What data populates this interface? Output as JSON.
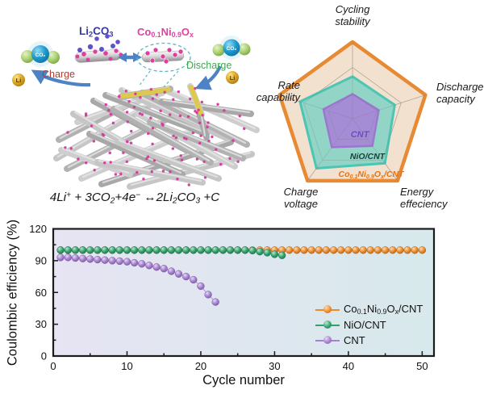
{
  "scheme": {
    "li2co3": "Li<sub>2</sub>CO<sub>3</sub>",
    "catalyst": "Co<sub>0.1</sub>Ni<sub>0.9</sub>O<sub>x</sub>",
    "charge": "Charge",
    "discharge": "Discharge",
    "li": "Li",
    "co2": "CO₂",
    "equation": "4Li<sup>+</sup> + 3CO<sub>2</sub>+4e<sup>−</sup> ↔2Li<sub>2</sub>CO<sub>3</sub> +C"
  },
  "colors": {
    "charge_text": "#B43A2E",
    "discharge_text": "#3FA653",
    "li2co3_text": "#3A3A9E",
    "catalyst_text": "#E03FA3",
    "arrow_blue": "#4D82C4",
    "dot_magenta": "#D6389D",
    "plot_bg_left": "#E7E4F3",
    "plot_bg_right": "#D7E9EC",
    "plot_border": "#1B1B1B"
  },
  "chart_data": [
    {
      "type": "radar",
      "axes": [
        "Cycling stability",
        "Discharge capacity",
        "Energy effeciency",
        "Charge voltage",
        "Rate capability"
      ],
      "range": [
        0,
        1
      ],
      "grid_levels": [
        0.333,
        0.667
      ],
      "series": [
        {
          "name": "Co<sub>0.1</sub>Ni<sub>0.9</sub>O<sub>x</sub>/CNT",
          "values": [
            1,
            1,
            1,
            1,
            1
          ],
          "stroke": "#E78A33",
          "fill": "#F3E1CF",
          "label_color": "#E0741C"
        },
        {
          "name": "NiO/CNT",
          "values": [
            0.55,
            0.58,
            0.72,
            0.8,
            0.72
          ],
          "stroke": "#4CC5B5",
          "fill": "#8AD2C4",
          "label_color": "#173F38"
        },
        {
          "name": "CNT",
          "values": [
            0.32,
            0.36,
            0.44,
            0.46,
            0.4
          ],
          "stroke": "#9B77CF",
          "fill": "#A689D7",
          "label_color": "#6A4FBF"
        }
      ]
    },
    {
      "type": "scatter",
      "xlabel": "Cycle number",
      "ylabel": "Coulombic efficiency (%)",
      "xlim": [
        0,
        51.6
      ],
      "ylim": [
        0,
        120
      ],
      "xticks": [
        0,
        10,
        20,
        30,
        40,
        50
      ],
      "yticks": [
        0,
        30,
        60,
        90,
        120
      ],
      "legend_position": "lower right",
      "series": [
        {
          "name": "Co<sub>0.1</sub>Ni<sub>0.9</sub>O<sub>x</sub>/CNT",
          "color": "#F08A26",
          "x": [
            1,
            2,
            3,
            4,
            5,
            6,
            7,
            8,
            9,
            10,
            11,
            12,
            13,
            14,
            15,
            16,
            17,
            18,
            19,
            20,
            21,
            22,
            23,
            24,
            25,
            26,
            27,
            28,
            29,
            30,
            31,
            32,
            33,
            34,
            35,
            36,
            37,
            38,
            39,
            40,
            41,
            42,
            43,
            44,
            45,
            46,
            47,
            48,
            49,
            50
          ],
          "y": [
            100,
            100,
            100,
            100,
            100,
            100,
            100,
            100,
            100,
            100,
            100,
            100,
            100,
            100,
            100,
            100,
            100,
            100,
            100,
            100,
            100,
            100,
            100,
            100,
            100,
            100,
            100,
            100,
            100,
            100,
            100,
            100,
            100,
            100,
            100,
            100,
            100,
            100,
            100,
            100,
            100,
            100,
            100,
            100,
            100,
            100,
            100,
            100,
            100,
            100
          ]
        },
        {
          "name": "NiO/CNT",
          "color": "#2EA36B",
          "x": [
            1,
            2,
            3,
            4,
            5,
            6,
            7,
            8,
            9,
            10,
            11,
            12,
            13,
            14,
            15,
            16,
            17,
            18,
            19,
            20,
            21,
            22,
            23,
            24,
            25,
            26,
            27,
            28,
            29,
            30,
            31
          ],
          "y": [
            100,
            100,
            100,
            100,
            100,
            100,
            100,
            100,
            100,
            100,
            100,
            100,
            100,
            100,
            100,
            100,
            100,
            100,
            100,
            100,
            100,
            100,
            100,
            100,
            100,
            100,
            99.5,
            98.5,
            97.5,
            96,
            95
          ]
        },
        {
          "name": "CNT",
          "color": "#A77FD3",
          "x": [
            1,
            2,
            3,
            4,
            5,
            6,
            7,
            8,
            9,
            10,
            11,
            12,
            13,
            14,
            15,
            16,
            17,
            18,
            19,
            20,
            21,
            22
          ],
          "y": [
            93,
            93,
            92.5,
            92,
            91.5,
            91,
            90.5,
            90,
            89.5,
            89,
            88,
            87,
            85.5,
            84,
            82.5,
            80,
            77.5,
            75,
            72,
            66,
            58,
            51
          ]
        }
      ]
    }
  ]
}
